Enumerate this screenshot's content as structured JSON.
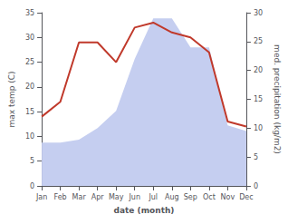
{
  "chart_data": {
    "type": "line",
    "xlabel": "date (month)",
    "ylabel": "max temp (C)",
    "y2label": "med. precipitation (kg/m2)",
    "categories": [
      "Jan",
      "Feb",
      "Mar",
      "Apr",
      "May",
      "Jun",
      "Jul",
      "Aug",
      "Sep",
      "Oct",
      "Nov",
      "Dec"
    ],
    "series": [
      {
        "type": "area",
        "axis": "y2",
        "color": "#c5cef0",
        "values": [
          7.5,
          7.5,
          8.0,
          10.0,
          13.0,
          22.0,
          29.0,
          29.0,
          24.0,
          24.0,
          10.5,
          9.5
        ]
      },
      {
        "type": "line",
        "color": "#c0392b",
        "values": [
          14.0,
          17.0,
          29.0,
          29.0,
          25.0,
          32.0,
          33.0,
          31.0,
          30.0,
          27.0,
          13.0,
          12.0
        ]
      }
    ],
    "ylim": [
      0,
      35
    ],
    "yticks": [
      0,
      5,
      10,
      15,
      20,
      25,
      30,
      35
    ],
    "y2lim": [
      0,
      30
    ],
    "y2ticks": [
      0,
      5,
      10,
      15,
      20,
      25,
      30
    ],
    "grid": false
  }
}
